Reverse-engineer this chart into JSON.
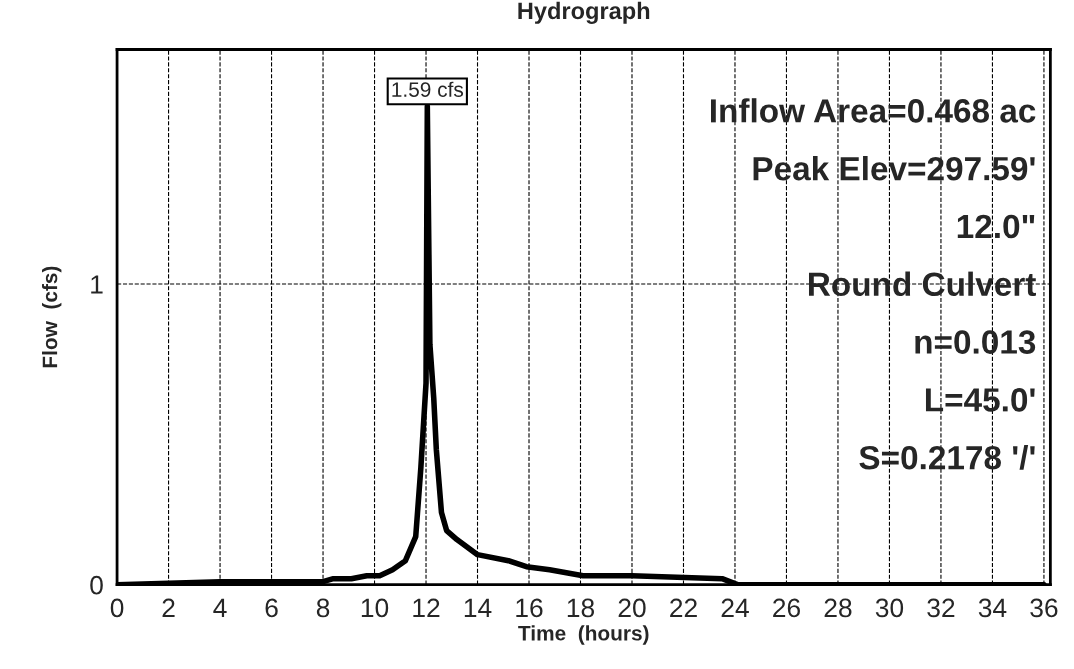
{
  "chart_data": {
    "type": "line",
    "title": "Hydrograph",
    "xlabel": "Time  (hours)",
    "ylabel": "Flow  (cfs)",
    "x": [
      0,
      4,
      8,
      8.4,
      9.1,
      9.7,
      10.2,
      10.7,
      11.2,
      11.6,
      11.8,
      12.0,
      12.05,
      12.15,
      12.3,
      12.4,
      12.6,
      12.8,
      13.2,
      14.0,
      15.2,
      15.9,
      16.8,
      18.1,
      20.0,
      23.5,
      24.1,
      36
    ],
    "series": [
      {
        "color": "#000000",
        "values": [
          0,
          0.01,
          0.01,
          0.02,
          0.02,
          0.03,
          0.03,
          0.05,
          0.08,
          0.16,
          0.39,
          0.67,
          1.59,
          0.8,
          0.62,
          0.45,
          0.24,
          0.18,
          0.15,
          0.1,
          0.08,
          0.06,
          0.05,
          0.03,
          0.03,
          0.02,
          0,
          0
        ]
      }
    ],
    "xlim": [
      0,
      36.25
    ],
    "ylim": [
      0,
      1.78
    ],
    "xticks": [
      0,
      2,
      4,
      6,
      8,
      10,
      12,
      14,
      16,
      18,
      20,
      22,
      24,
      26,
      28,
      30,
      32,
      34,
      36
    ],
    "yticks": [
      0,
      1
    ],
    "grid": true,
    "annotations": [
      {
        "text": "1.59 cfs",
        "x": 12.05,
        "y": 1.59
      },
      "Inflow Area=0.468 ac",
      "Peak Elev=297.59'",
      "12.0\"",
      "Round Culvert",
      "n=0.013",
      "L=45.0'",
      "S=0.2178 '/'"
    ]
  }
}
